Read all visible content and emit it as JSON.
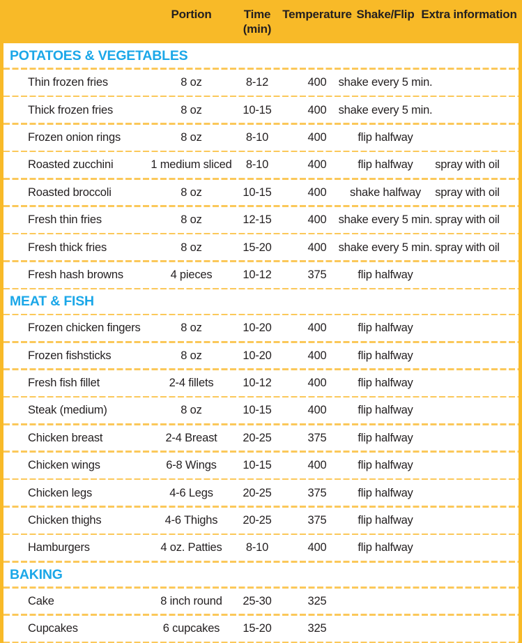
{
  "colors": {
    "header_background": "#F8BA28",
    "dashed_separator": "#FBC85A",
    "section_title": "#1BA7E8",
    "text": "#231F20",
    "row_background": "#FFFFFF"
  },
  "chart_data": {
    "type": "table",
    "columns": [
      {
        "label": "",
        "sublabel": ""
      },
      {
        "label": "Portion",
        "sublabel": ""
      },
      {
        "label": "Time",
        "sublabel": "(min)"
      },
      {
        "label": "Temperature",
        "sublabel": ""
      },
      {
        "label": "Shake/Flip",
        "sublabel": ""
      },
      {
        "label": "Extra information",
        "sublabel": ""
      }
    ],
    "sections": [
      {
        "title": "POTATOES & VEGETABLES",
        "rows": [
          {
            "name": "Thin frozen fries",
            "portion": "8 oz",
            "time": "8-12",
            "temperature": "400",
            "shake_flip": "shake every 5 min.",
            "extra": ""
          },
          {
            "name": "Thick frozen fries",
            "portion": "8 oz",
            "time": "10-15",
            "temperature": "400",
            "shake_flip": "shake every 5 min.",
            "extra": ""
          },
          {
            "name": "Frozen onion rings",
            "portion": "8 oz",
            "time": "8-10",
            "temperature": "400",
            "shake_flip": "flip halfway",
            "extra": ""
          },
          {
            "name": "Roasted zucchini",
            "portion": "1 medium sliced",
            "time": "8-10",
            "temperature": "400",
            "shake_flip": "flip halfway",
            "extra": "spray with oil"
          },
          {
            "name": "Roasted broccoli",
            "portion": "8 oz",
            "time": "10-15",
            "temperature": "400",
            "shake_flip": "shake halfway",
            "extra": "spray with oil"
          },
          {
            "name": "Fresh thin fries",
            "portion": "8 oz",
            "time": "12-15",
            "temperature": "400",
            "shake_flip": "shake every 5 min.",
            "extra": "spray with oil"
          },
          {
            "name": "Fresh thick fries",
            "portion": "8 oz",
            "time": "15-20",
            "temperature": "400",
            "shake_flip": "shake every 5 min.",
            "extra": "spray with oil"
          },
          {
            "name": "Fresh hash browns",
            "portion": "4 pieces",
            "time": "10-12",
            "temperature": "375",
            "shake_flip": "flip halfway",
            "extra": ""
          }
        ]
      },
      {
        "title": "MEAT & FISH",
        "rows": [
          {
            "name": "Frozen chicken fingers",
            "portion": "8 oz",
            "time": "10-20",
            "temperature": "400",
            "shake_flip": "flip halfway",
            "extra": ""
          },
          {
            "name": "Frozen fishsticks",
            "portion": "8 oz",
            "time": "10-20",
            "temperature": "400",
            "shake_flip": "flip halfway",
            "extra": ""
          },
          {
            "name": "Fresh fish fillet",
            "portion": "2-4 fillets",
            "time": "10-12",
            "temperature": "400",
            "shake_flip": "flip halfway",
            "extra": ""
          },
          {
            "name": "Steak (medium)",
            "portion": "8 oz",
            "time": "10-15",
            "temperature": "400",
            "shake_flip": "flip halfway",
            "extra": ""
          },
          {
            "name": "Chicken breast",
            "portion": "2-4 Breast",
            "time": "20-25",
            "temperature": "375",
            "shake_flip": "flip halfway",
            "extra": ""
          },
          {
            "name": "Chicken wings",
            "portion": "6-8 Wings",
            "time": "10-15",
            "temperature": "400",
            "shake_flip": "flip halfway",
            "extra": ""
          },
          {
            "name": "Chicken legs",
            "portion": "4-6 Legs",
            "time": "20-25",
            "temperature": "375",
            "shake_flip": "flip halfway",
            "extra": ""
          },
          {
            "name": "Chicken thighs",
            "portion": "4-6 Thighs",
            "time": "20-25",
            "temperature": "375",
            "shake_flip": "flip halfway",
            "extra": ""
          },
          {
            "name": "Hamburgers",
            "portion": "4 oz. Patties",
            "time": "8-10",
            "temperature": "400",
            "shake_flip": "flip halfway",
            "extra": ""
          }
        ]
      },
      {
        "title": "BAKING",
        "rows": [
          {
            "name": "Cake",
            "portion": "8 inch round",
            "time": "25-30",
            "temperature": "325",
            "shake_flip": "",
            "extra": ""
          },
          {
            "name": "Cupcakes",
            "portion": "6 cupcakes",
            "time": "15-20",
            "temperature": "325",
            "shake_flip": "",
            "extra": ""
          }
        ]
      }
    ]
  }
}
